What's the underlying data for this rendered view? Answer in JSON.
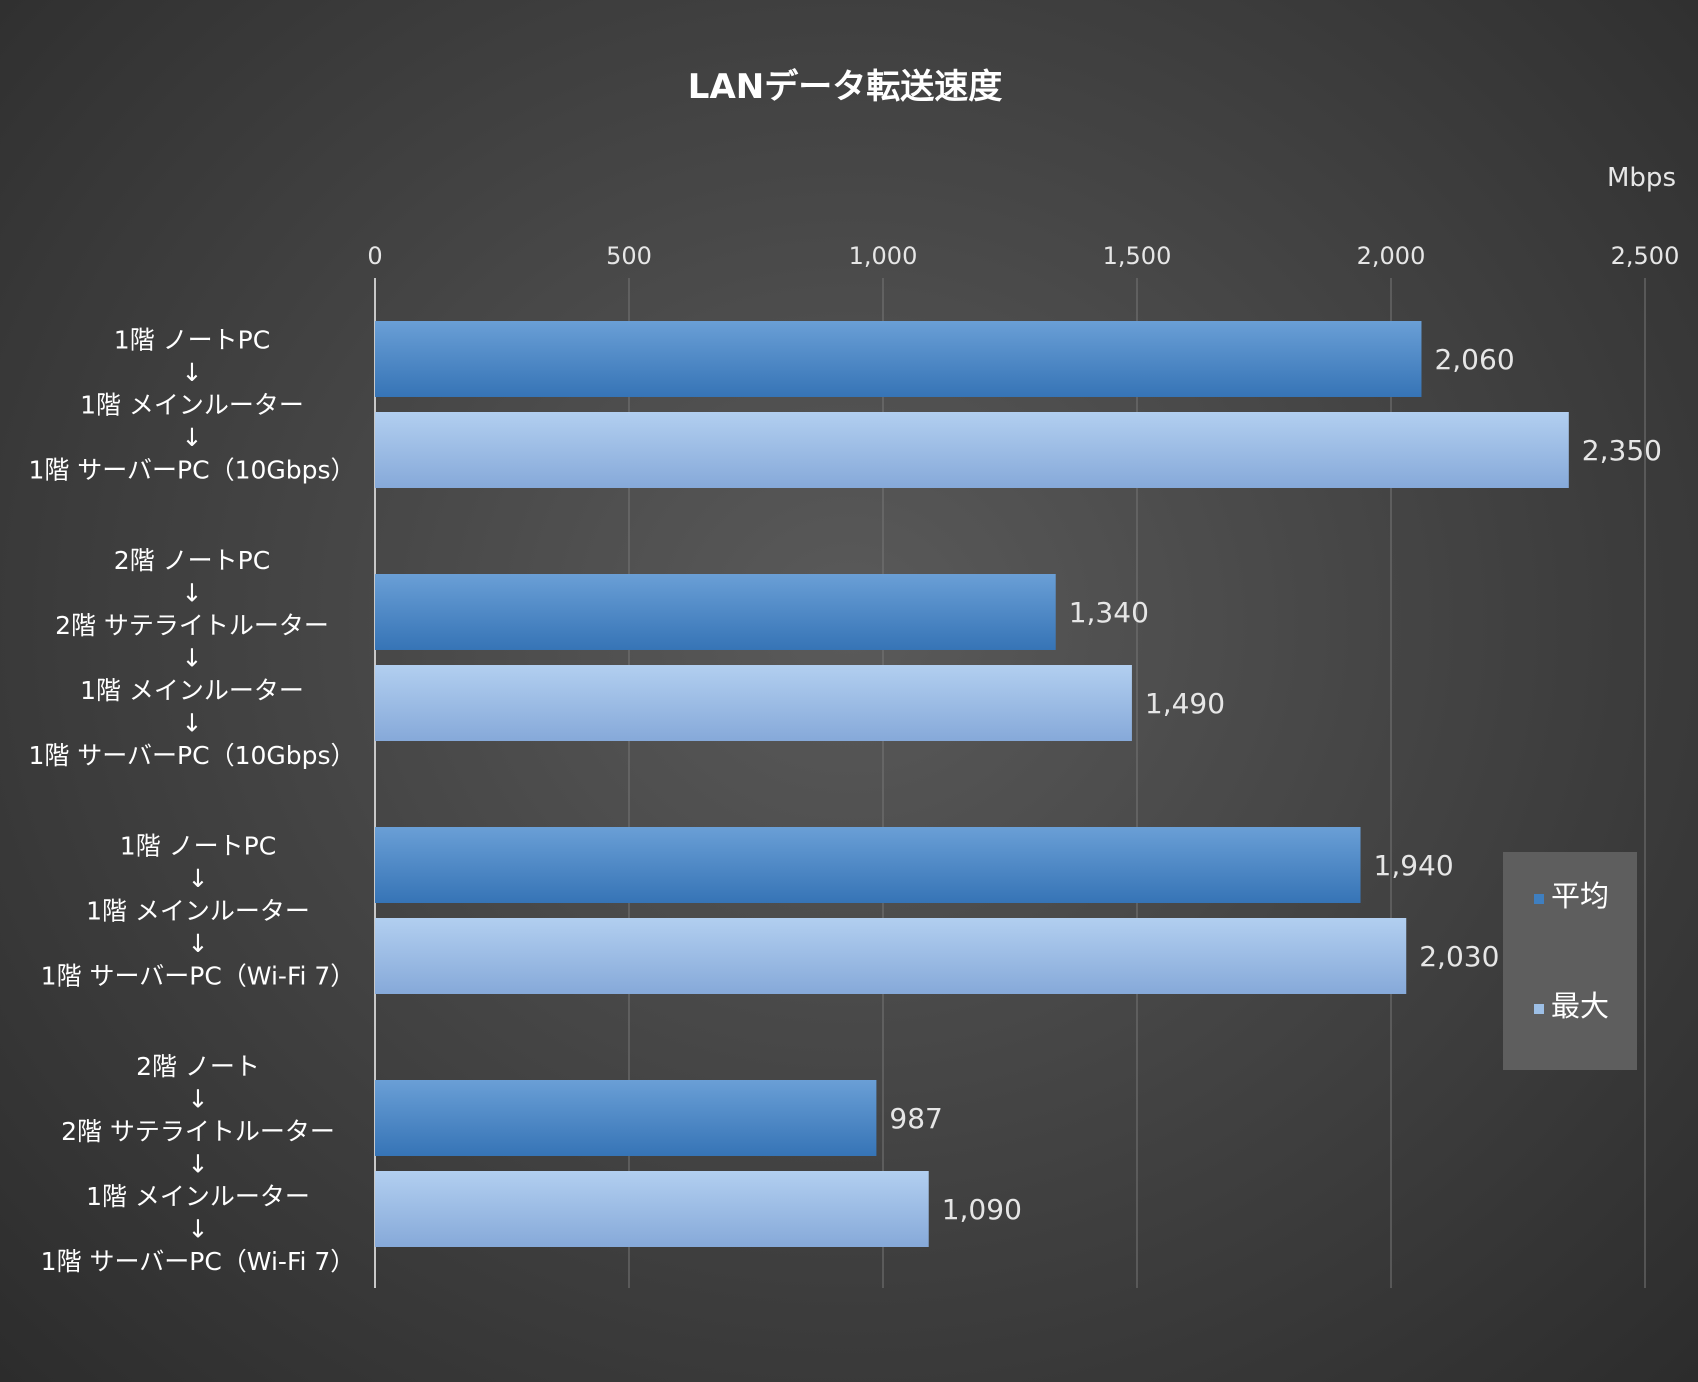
{
  "chart_data": {
    "type": "bar",
    "orientation": "horizontal",
    "title": "LANデータ転送速度",
    "unit": "Mbps",
    "xlim": [
      0,
      2500
    ],
    "ticks": [
      0,
      500,
      1000,
      1500,
      2000,
      2500
    ],
    "tick_labels": [
      "0",
      "500",
      "1,000",
      "1,500",
      "2,000",
      "2,500"
    ],
    "grid": true,
    "legend_position": "right",
    "colors": {
      "平均": "#3f7fc0",
      "最大": "#9dbfe6"
    },
    "categories": [
      [
        "1階 ノートPC",
        "↓",
        "1階 メインルーター",
        "↓",
        "1階 サーバーPC（10Gbps）"
      ],
      [
        "2階 ノートPC",
        "↓",
        "2階 サテライトルーター",
        "↓",
        "1階 メインルーター",
        "↓",
        "1階 サーバーPC（10Gbps）"
      ],
      [
        "1階 ノートPC",
        "↓",
        "1階 メインルーター",
        "↓",
        "1階 サーバーPC（Wi-Fi 7）"
      ],
      [
        "2階 ノート",
        "↓",
        "2階 サテライトルーター",
        "↓",
        "1階 メインルーター",
        "↓",
        "1階 サーバーPC（Wi-Fi 7）"
      ]
    ],
    "series": [
      {
        "name": "平均",
        "values": [
          2060,
          1340,
          1940,
          987
        ],
        "labels": [
          "2,060",
          "1,340",
          "1,940",
          "987"
        ]
      },
      {
        "name": "最大",
        "values": [
          2350,
          1490,
          2030,
          1090
        ],
        "labels": [
          "2,350",
          "1,490",
          "2,030",
          "1,090"
        ]
      }
    ]
  }
}
